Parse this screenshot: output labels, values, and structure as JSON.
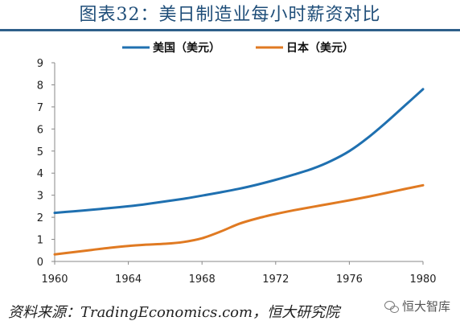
{
  "header": {
    "title": "图表32：美日制造业每小时薪资对比"
  },
  "footer": {
    "source": "资料来源：TradingEconomics.com，恒大研究院",
    "watermark": "恒大智库"
  },
  "colors": {
    "us": "#1f70b0",
    "japan": "#e07a22",
    "axis": "#888888"
  },
  "chart_data": {
    "type": "line",
    "title": "",
    "xlabel": "",
    "ylabel": "",
    "x_ticks": [
      1960,
      1964,
      1968,
      1972,
      1976,
      1980
    ],
    "y_ticks": [
      0,
      1,
      2,
      3,
      4,
      5,
      6,
      7,
      8,
      9
    ],
    "xlim": [
      1960,
      1980
    ],
    "ylim": [
      0,
      9
    ],
    "grid": false,
    "legend_position": "top-center",
    "series": [
      {
        "name": "美国（美元）",
        "color": "#1f70b0",
        "x": [
          1960,
          1961,
          1962,
          1963,
          1964,
          1965,
          1966,
          1967,
          1968,
          1969,
          1970,
          1971,
          1972,
          1973,
          1974,
          1975,
          1976,
          1977,
          1978,
          1979,
          1980
        ],
        "values": [
          2.2,
          2.27,
          2.34,
          2.42,
          2.5,
          2.6,
          2.72,
          2.84,
          2.98,
          3.13,
          3.29,
          3.48,
          3.7,
          3.94,
          4.2,
          4.55,
          5.0,
          5.6,
          6.3,
          7.05,
          7.8
        ]
      },
      {
        "name": "日本（美元）",
        "color": "#e07a22",
        "x": [
          1960,
          1961,
          1962,
          1963,
          1964,
          1965,
          1966,
          1967,
          1968,
          1969,
          1970,
          1971,
          1972,
          1973,
          1974,
          1975,
          1976,
          1977,
          1978,
          1979,
          1980
        ],
        "values": [
          0.32,
          0.42,
          0.52,
          0.62,
          0.7,
          0.76,
          0.8,
          0.88,
          1.05,
          1.35,
          1.7,
          1.95,
          2.15,
          2.32,
          2.47,
          2.62,
          2.77,
          2.93,
          3.1,
          3.28,
          3.45
        ]
      }
    ]
  }
}
